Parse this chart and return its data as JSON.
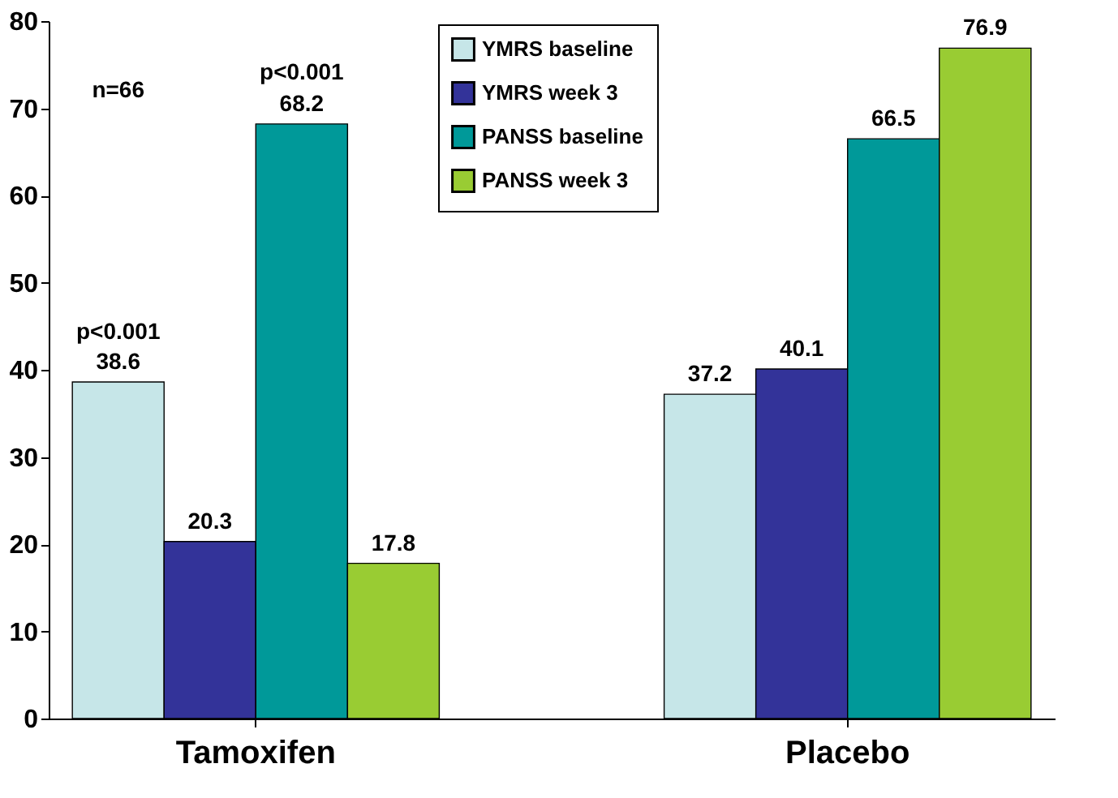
{
  "chart_data": {
    "type": "bar",
    "categories": [
      "Tamoxifen",
      "Placebo"
    ],
    "series": [
      {
        "name": "YMRS baseline",
        "color": "#c6e6e8",
        "values": [
          38.6,
          37.2
        ]
      },
      {
        "name": "YMRS week 3",
        "color": "#333399",
        "values": [
          20.3,
          40.1
        ]
      },
      {
        "name": "PANSS baseline",
        "color": "#009999",
        "values": [
          68.2,
          66.5
        ]
      },
      {
        "name": "PANSS week 3",
        "color": "#99cc33",
        "values": [
          17.8,
          76.9
        ]
      }
    ],
    "ylim": [
      0,
      80
    ],
    "yticks": [
      0,
      10,
      20,
      30,
      40,
      50,
      60,
      70,
      80
    ],
    "grid": false,
    "legend": "top right",
    "data_labels": true,
    "annotations": [
      "n=66",
      "p<0.001",
      "p<0.001"
    ]
  }
}
